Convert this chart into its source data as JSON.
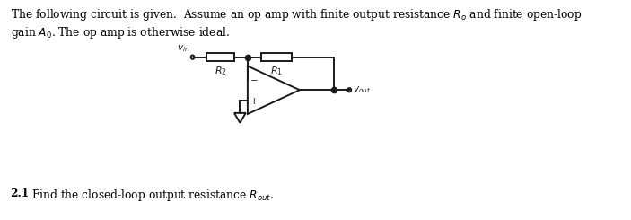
{
  "background_color": "#ffffff",
  "text_color": "#000000",
  "title_line1": "The following circuit is given.  Assume an op amp with finite output resistance $R_o$ and finite open-loop",
  "title_line2": "gain $A_0$. The op amp is otherwise ideal.",
  "question": "\\textbf{2.1}  Find the closed-loop output resistance $R_{out}$.",
  "vin_label": "$v_{in}$",
  "vout_label": "$v_{out}$",
  "r1_label": "$R_1$",
  "r2_label": "$R_2$",
  "fig_width": 7.03,
  "fig_height": 2.45,
  "dpi": 100,
  "lw": 1.4,
  "col": "#1a1a1a"
}
